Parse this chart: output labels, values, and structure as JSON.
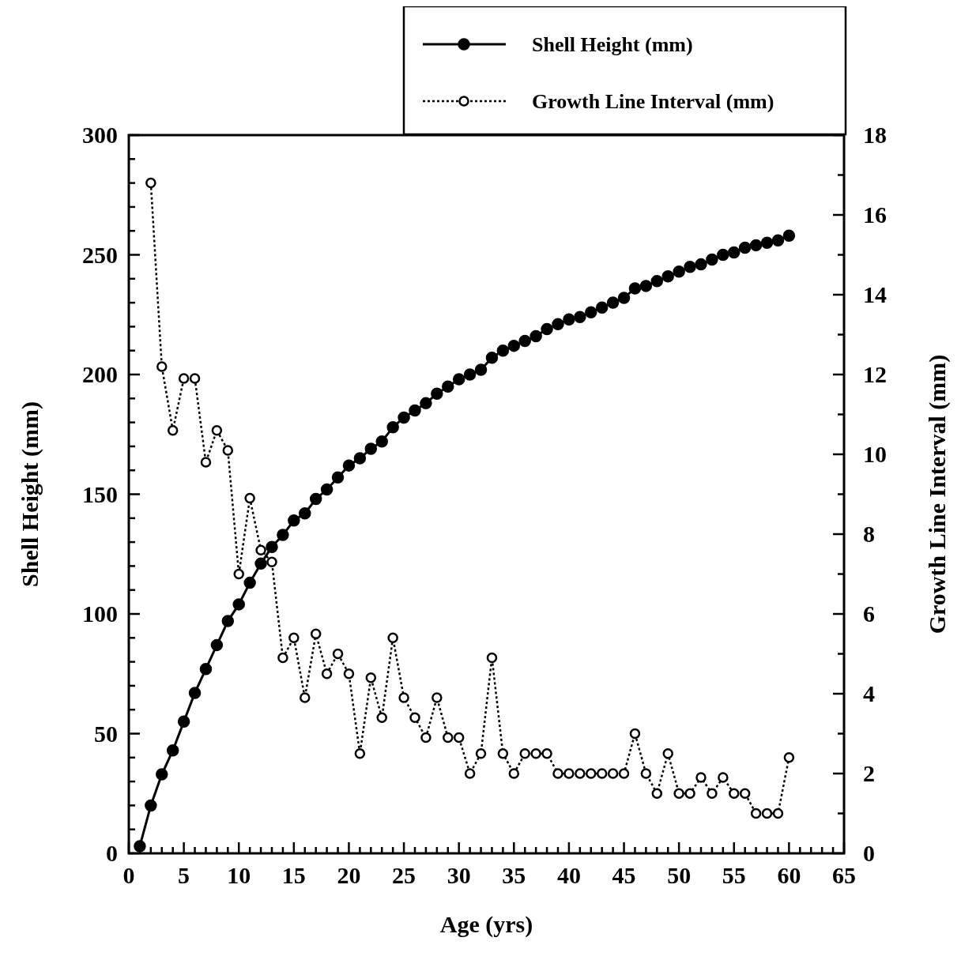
{
  "chart_data": {
    "type": "line",
    "xlabel": "Age (yrs)",
    "ylabel": "Shell Height (mm)",
    "y2label": "Growth Line Interval (mm)",
    "legend": "top right",
    "marker": "circle",
    "grid": false,
    "xlim": [
      0,
      65
    ],
    "ylim": [
      0,
      300
    ],
    "y2lim": [
      0,
      18
    ],
    "xticks": [
      0,
      {
        "value": 1,
        "label": null
      },
      {
        "value": 2,
        "label": null
      },
      {
        "value": 3,
        "label": null
      },
      {
        "value": 4,
        "label": null
      },
      5,
      {
        "value": 6,
        "label": null
      },
      {
        "value": 7,
        "label": null
      },
      {
        "value": 8,
        "label": null
      },
      {
        "value": 9,
        "label": null
      },
      10,
      {
        "value": 11,
        "label": null
      },
      {
        "value": 12,
        "label": null
      },
      {
        "value": 13,
        "label": null
      },
      {
        "value": 14,
        "label": null
      },
      15,
      {
        "value": 16,
        "label": null
      },
      {
        "value": 17,
        "label": null
      },
      {
        "value": 18,
        "label": null
      },
      {
        "value": 19,
        "label": null
      },
      20,
      {
        "value": 21,
        "label": null
      },
      {
        "value": 22,
        "label": null
      },
      {
        "value": 23,
        "label": null
      },
      {
        "value": 24,
        "label": null
      },
      25,
      {
        "value": 26,
        "label": null
      },
      {
        "value": 27,
        "label": null
      },
      {
        "value": 28,
        "label": null
      },
      {
        "value": 29,
        "label": null
      },
      30,
      {
        "value": 31,
        "label": null
      },
      {
        "value": 32,
        "label": null
      },
      {
        "value": 33,
        "label": null
      },
      {
        "value": 34,
        "label": null
      },
      35,
      {
        "value": 36,
        "label": null
      },
      {
        "value": 37,
        "label": null
      },
      {
        "value": 38,
        "label": null
      },
      {
        "value": 39,
        "label": null
      },
      40,
      {
        "value": 41,
        "label": null
      },
      {
        "value": 42,
        "label": null
      },
      {
        "value": 43,
        "label": null
      },
      {
        "value": 44,
        "label": null
      },
      45,
      {
        "value": 46,
        "label": null
      },
      {
        "value": 47,
        "label": null
      },
      {
        "value": 48,
        "label": null
      },
      {
        "value": 49,
        "label": null
      },
      50,
      {
        "value": 51,
        "label": null
      },
      {
        "value": 52,
        "label": null
      },
      {
        "value": 53,
        "label": null
      },
      {
        "value": 54,
        "label": null
      },
      55,
      {
        "value": 56,
        "label": null
      },
      {
        "value": 57,
        "label": null
      },
      {
        "value": 58,
        "label": null
      },
      {
        "value": 59,
        "label": null
      },
      60,
      {
        "value": 61,
        "label": null
      },
      {
        "value": 62,
        "label": null
      },
      {
        "value": 63,
        "label": null
      },
      {
        "value": 64,
        "label": null
      },
      65
    ],
    "yticks": [
      0,
      {
        "value": 10,
        "label": null
      },
      {
        "value": 20,
        "label": null
      },
      {
        "value": 30,
        "label": null
      },
      {
        "value": 40,
        "label": null
      },
      50,
      {
        "value": 60,
        "label": null
      },
      {
        "value": 70,
        "label": null
      },
      {
        "value": 80,
        "label": null
      },
      {
        "value": 90,
        "label": null
      },
      100,
      {
        "value": 110,
        "label": null
      },
      {
        "value": 120,
        "label": null
      },
      {
        "value": 130,
        "label": null
      },
      {
        "value": 140,
        "label": null
      },
      150,
      {
        "value": 160,
        "label": null
      },
      {
        "value": 170,
        "label": null
      },
      {
        "value": 180,
        "label": null
      },
      {
        "value": 190,
        "label": null
      },
      200,
      {
        "value": 210,
        "label": null
      },
      {
        "value": 220,
        "label": null
      },
      {
        "value": 230,
        "label": null
      },
      {
        "value": 240,
        "label": null
      },
      250,
      {
        "value": 260,
        "label": null
      },
      {
        "value": 270,
        "label": null
      },
      {
        "value": 280,
        "label": null
      },
      {
        "value": 290,
        "label": null
      },
      300
    ],
    "y2ticks": [
      0,
      {
        "value": 1,
        "label": null
      },
      2,
      {
        "value": 3,
        "label": null
      },
      4,
      {
        "value": 5,
        "label": null
      },
      6,
      {
        "value": 7,
        "label": null
      },
      8,
      {
        "value": 9,
        "label": null
      },
      10,
      {
        "value": 11,
        "label": null
      },
      12,
      {
        "value": 13,
        "label": null
      },
      14,
      {
        "value": 15,
        "label": null
      },
      16,
      {
        "value": 17,
        "label": null
      },
      18
    ],
    "series": [
      {
        "name": "Shell Height (mm)",
        "color": "#000000",
        "line_style": "solid",
        "x": [
          1,
          2,
          3,
          4,
          5,
          6,
          7,
          8,
          9,
          10,
          11,
          12,
          13,
          14,
          15,
          16,
          17,
          18,
          19,
          20,
          21,
          22,
          23,
          24,
          25,
          26,
          27,
          28,
          29,
          30,
          31,
          32,
          33,
          34,
          35,
          36,
          37,
          38,
          39,
          40,
          41,
          42,
          43,
          44,
          45,
          46,
          47,
          48,
          49,
          50,
          51,
          52,
          53,
          54,
          55,
          56,
          57,
          58,
          59,
          60
        ],
        "values": [
          3,
          20,
          33,
          43,
          55,
          67,
          77,
          87,
          97,
          104,
          113,
          121,
          128,
          133,
          139,
          142,
          148,
          152,
          157,
          162,
          165,
          169,
          172,
          178,
          182,
          185,
          188,
          192,
          195,
          198,
          200,
          202,
          207,
          210,
          212,
          214,
          216,
          219,
          221,
          223,
          224,
          226,
          228,
          230,
          232,
          236,
          237,
          239,
          241,
          243,
          245,
          246,
          248,
          250,
          251,
          253,
          254,
          255,
          256,
          258
        ]
      },
      {
        "name": "Growth Line Interval (mm)",
        "color": "#000000",
        "line_style": "dotted",
        "axis": "y2",
        "x": [
          2,
          3,
          4,
          5,
          6,
          7,
          8,
          9,
          10,
          11,
          12,
          13,
          14,
          15,
          16,
          17,
          18,
          19,
          20,
          21,
          22,
          23,
          24,
          25,
          26,
          27,
          28,
          29,
          30,
          31,
          32,
          33,
          34,
          35,
          36,
          37,
          38,
          39,
          40,
          41,
          42,
          43,
          44,
          45,
          46,
          47,
          48,
          49,
          50,
          51,
          52,
          53,
          54,
          55,
          56,
          57,
          58,
          59,
          60
        ],
        "values": [
          16.8,
          12.2,
          10.6,
          11.9,
          11.9,
          9.8,
          10.6,
          10.1,
          7.0,
          8.9,
          7.6,
          7.3,
          4.9,
          5.4,
          3.9,
          5.5,
          4.5,
          5.0,
          4.5,
          2.5,
          4.4,
          3.4,
          5.4,
          3.9,
          3.4,
          2.9,
          3.9,
          2.9,
          2.9,
          2.0,
          2.5,
          4.9,
          2.5,
          2.0,
          2.5,
          2.5,
          2.5,
          2.0,
          2.0,
          2.0,
          2.0,
          2.0,
          2.0,
          2.0,
          3.0,
          2.0,
          1.5,
          2.5,
          1.5,
          1.5,
          1.9,
          1.5,
          1.9,
          1.5,
          1.5,
          1.0,
          1.0,
          1.0,
          2.4
        ]
      }
    ]
  }
}
